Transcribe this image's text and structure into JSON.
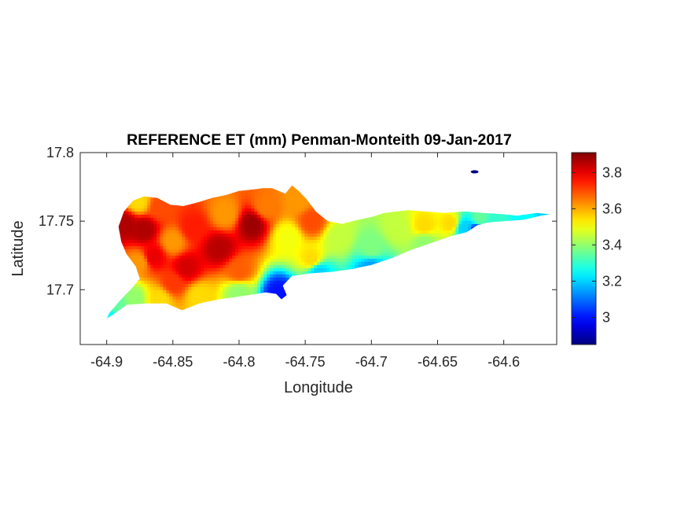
{
  "chart_data": {
    "type": "heatmap",
    "title": "REFERENCE ET (mm) Penman-Monteith 09-Jan-2017",
    "xlabel": "Longitude",
    "ylabel": "Latitude",
    "xlim": [
      -64.92,
      -64.56
    ],
    "ylim": [
      17.66,
      17.8
    ],
    "xticks": [
      -64.9,
      -64.85,
      -64.8,
      -64.75,
      -64.7,
      -64.65,
      -64.6
    ],
    "xtick_labels": [
      "-64.9",
      "-64.85",
      "-64.8",
      "-64.75",
      "-64.7",
      "-64.65",
      "-64.6"
    ],
    "yticks": [
      17.7,
      17.75,
      17.8
    ],
    "ytick_labels": [
      "17.7",
      "17.75",
      "17.8"
    ],
    "colormap": "jet",
    "colorbar": {
      "clim": [
        2.85,
        3.91
      ],
      "ticks": [
        3.0,
        3.2,
        3.4,
        3.6,
        3.8
      ],
      "tick_labels": [
        "3",
        "3.2",
        "3.4",
        "3.6",
        "3.8"
      ]
    },
    "island_outline": [
      [
        -64.9,
        17.679
      ],
      [
        -64.895,
        17.682
      ],
      [
        -64.885,
        17.689
      ],
      [
        -64.87,
        17.69
      ],
      [
        -64.855,
        17.69
      ],
      [
        -64.843,
        17.685
      ],
      [
        -64.83,
        17.69
      ],
      [
        -64.815,
        17.693
      ],
      [
        -64.8,
        17.695
      ],
      [
        -64.78,
        17.698
      ],
      [
        -64.772,
        17.697
      ],
      [
        -64.768,
        17.693
      ],
      [
        -64.764,
        17.696
      ],
      [
        -64.767,
        17.703
      ],
      [
        -64.76,
        17.71
      ],
      [
        -64.745,
        17.712
      ],
      [
        -64.73,
        17.713
      ],
      [
        -64.715,
        17.715
      ],
      [
        -64.7,
        17.718
      ],
      [
        -64.685,
        17.723
      ],
      [
        -64.67,
        17.729
      ],
      [
        -64.655,
        17.734
      ],
      [
        -64.64,
        17.739
      ],
      [
        -64.628,
        17.742
      ],
      [
        -64.62,
        17.747
      ],
      [
        -64.612,
        17.749
      ],
      [
        -64.6,
        17.75
      ],
      [
        -64.585,
        17.751
      ],
      [
        -64.572,
        17.754
      ],
      [
        -64.565,
        17.755
      ],
      [
        -64.575,
        17.756
      ],
      [
        -64.59,
        17.754
      ],
      [
        -64.6,
        17.755
      ],
      [
        -64.615,
        17.756
      ],
      [
        -64.63,
        17.757
      ],
      [
        -64.645,
        17.756
      ],
      [
        -64.66,
        17.757
      ],
      [
        -64.672,
        17.758
      ],
      [
        -64.69,
        17.756
      ],
      [
        -64.7,
        17.753
      ],
      [
        -64.71,
        17.751
      ],
      [
        -64.722,
        17.748
      ],
      [
        -64.733,
        17.75
      ],
      [
        -64.742,
        17.757
      ],
      [
        -64.749,
        17.766
      ],
      [
        -64.755,
        17.772
      ],
      [
        -64.76,
        17.776
      ],
      [
        -64.765,
        17.77
      ],
      [
        -64.77,
        17.772
      ],
      [
        -64.775,
        17.774
      ],
      [
        -64.782,
        17.774
      ],
      [
        -64.79,
        17.773
      ],
      [
        -64.8,
        17.772
      ],
      [
        -64.81,
        17.769
      ],
      [
        -64.82,
        17.767
      ],
      [
        -64.83,
        17.764
      ],
      [
        -64.842,
        17.761
      ],
      [
        -64.852,
        17.762
      ],
      [
        -64.862,
        17.767
      ],
      [
        -64.872,
        17.768
      ],
      [
        -64.88,
        17.765
      ],
      [
        -64.887,
        17.757
      ],
      [
        -64.891,
        17.746
      ],
      [
        -64.889,
        17.735
      ],
      [
        -64.885,
        17.726
      ],
      [
        -64.878,
        17.717
      ],
      [
        -64.875,
        17.708
      ],
      [
        -64.88,
        17.702
      ],
      [
        -64.89,
        17.692
      ],
      [
        -64.898,
        17.683
      ]
    ],
    "islet_point": {
      "lon": -64.622,
      "lat": 17.786,
      "value": 2.85
    },
    "interpolation_stations": [
      {
        "lon": -64.886,
        "lat": 17.748,
        "value": 3.86
      },
      {
        "lon": -64.872,
        "lat": 17.744,
        "value": 3.86
      },
      {
        "lon": -64.876,
        "lat": 17.764,
        "value": 3.55
      },
      {
        "lon": -64.86,
        "lat": 17.76,
        "value": 3.7
      },
      {
        "lon": -64.865,
        "lat": 17.724,
        "value": 3.8
      },
      {
        "lon": -64.875,
        "lat": 17.72,
        "value": 3.62
      },
      {
        "lon": -64.85,
        "lat": 17.735,
        "value": 3.62
      },
      {
        "lon": -64.84,
        "lat": 17.716,
        "value": 3.82
      },
      {
        "lon": -64.85,
        "lat": 17.705,
        "value": 3.72
      },
      {
        "lon": -64.835,
        "lat": 17.745,
        "value": 3.75
      },
      {
        "lon": -64.815,
        "lat": 17.73,
        "value": 3.85
      },
      {
        "lon": -64.81,
        "lat": 17.755,
        "value": 3.62
      },
      {
        "lon": -64.79,
        "lat": 17.748,
        "value": 3.88
      },
      {
        "lon": -64.8,
        "lat": 17.713,
        "value": 3.68
      },
      {
        "lon": -64.78,
        "lat": 17.76,
        "value": 3.65
      },
      {
        "lon": -64.763,
        "lat": 17.738,
        "value": 3.5
      },
      {
        "lon": -64.745,
        "lat": 17.75,
        "value": 3.7
      },
      {
        "lon": -64.745,
        "lat": 17.722,
        "value": 3.55
      },
      {
        "lon": -64.755,
        "lat": 17.765,
        "value": 3.62
      },
      {
        "lon": -64.725,
        "lat": 17.738,
        "value": 3.45
      },
      {
        "lon": -64.7,
        "lat": 17.73,
        "value": 3.38
      },
      {
        "lon": -64.68,
        "lat": 17.745,
        "value": 3.45
      },
      {
        "lon": -64.66,
        "lat": 17.746,
        "value": 3.55
      },
      {
        "lon": -64.66,
        "lat": 17.735,
        "value": 3.4
      },
      {
        "lon": -64.64,
        "lat": 17.748,
        "value": 3.55
      },
      {
        "lon": -64.63,
        "lat": 17.745,
        "value": 3.2
      },
      {
        "lon": -64.618,
        "lat": 17.752,
        "value": 3.35
      },
      {
        "lon": -64.605,
        "lat": 17.752,
        "value": 3.3
      },
      {
        "lon": -64.585,
        "lat": 17.753,
        "value": 3.25
      },
      {
        "lon": -64.568,
        "lat": 17.755,
        "value": 3.2
      },
      {
        "lon": -64.892,
        "lat": 17.69,
        "value": 3.35
      },
      {
        "lon": -64.9,
        "lat": 17.68,
        "value": 3.25
      },
      {
        "lon": -64.88,
        "lat": 17.693,
        "value": 3.4
      },
      {
        "lon": -64.86,
        "lat": 17.693,
        "value": 3.55
      },
      {
        "lon": -64.77,
        "lat": 17.697,
        "value": 3.0
      },
      {
        "lon": -64.74,
        "lat": 17.713,
        "value": 3.2
      },
      {
        "lon": -64.7,
        "lat": 17.716,
        "value": 3.15
      },
      {
        "lon": -64.62,
        "lat": 17.742,
        "value": 2.95
      },
      {
        "lon": -64.83,
        "lat": 17.695,
        "value": 3.55
      },
      {
        "lon": -64.8,
        "lat": 17.698,
        "value": 3.4
      }
    ]
  }
}
